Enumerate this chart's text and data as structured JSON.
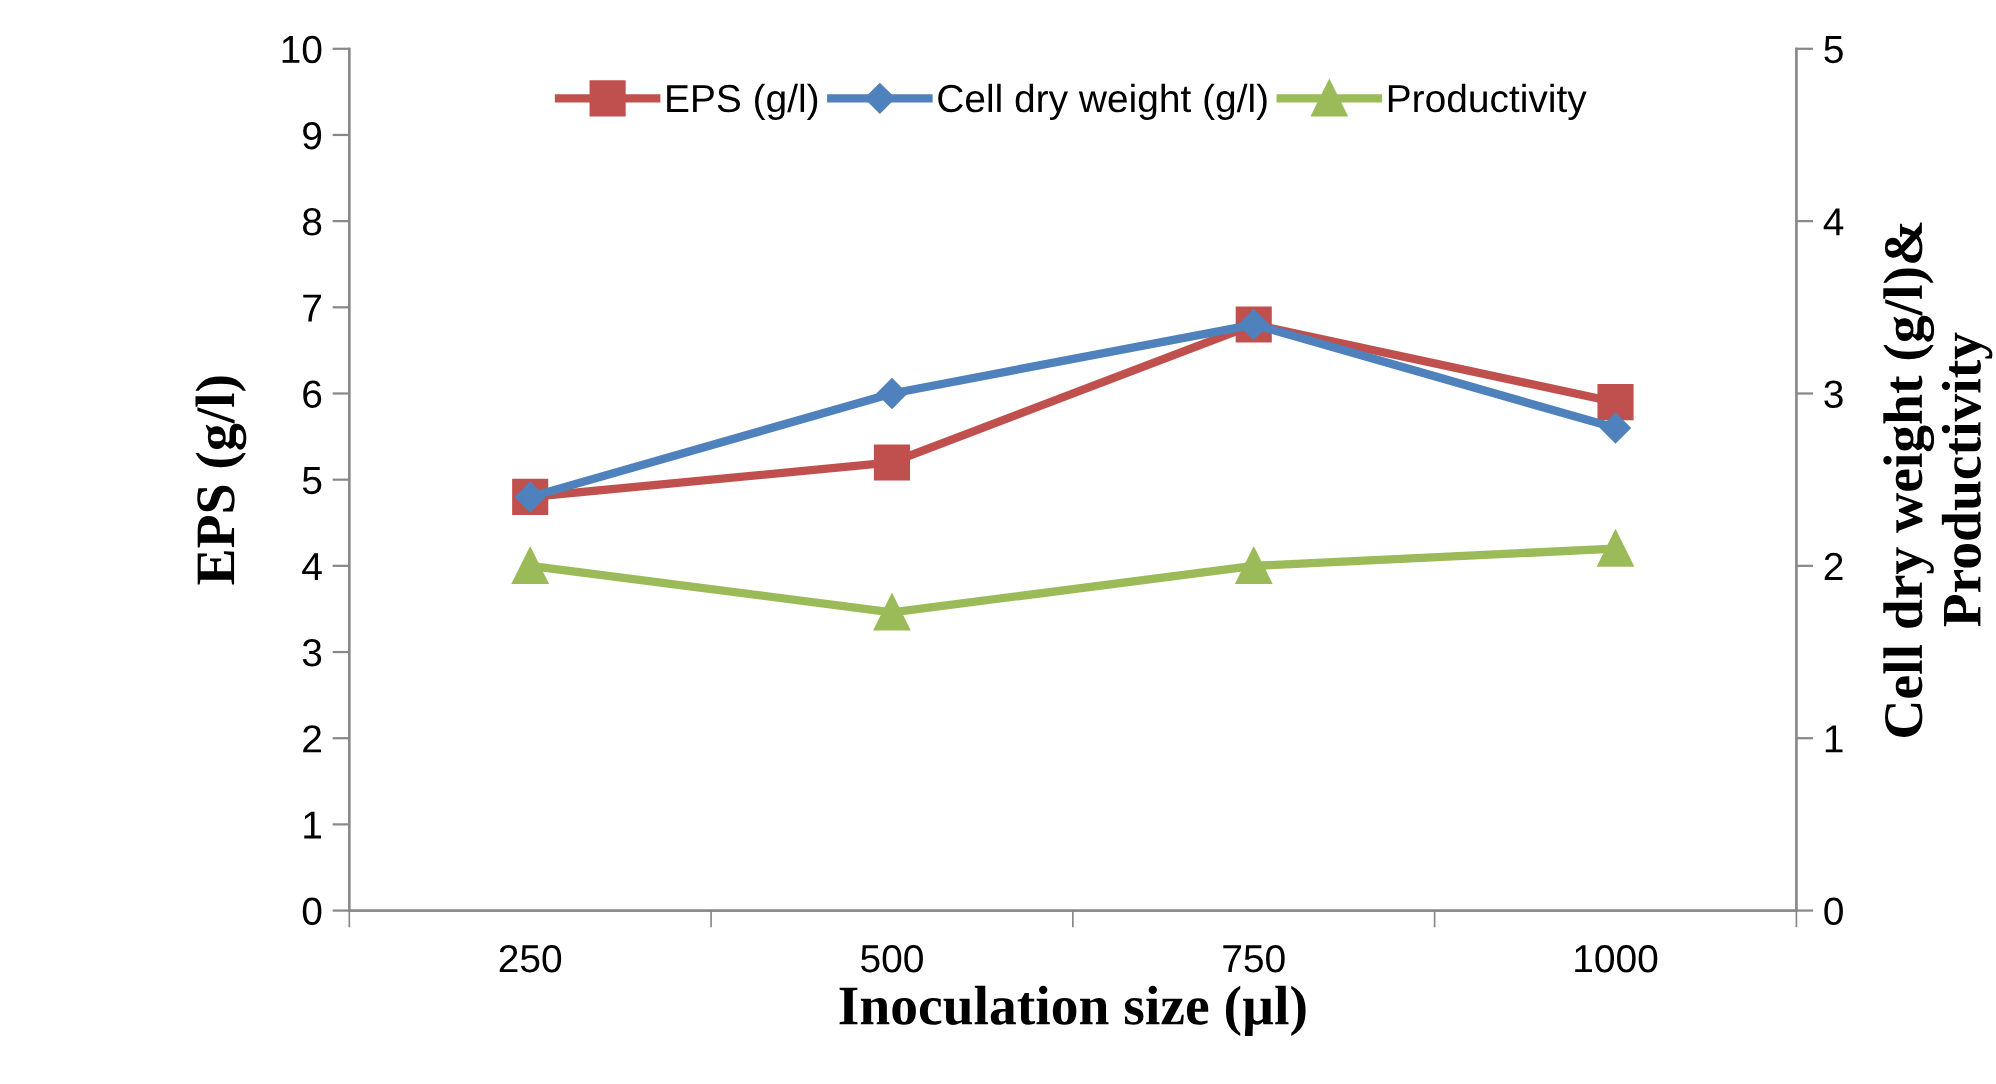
{
  "chart_data": {
    "type": "line",
    "xlabel": "Inoculation size (µl)",
    "ylabel": "EPS (g/l)",
    "y2label": "Cell dry weight (g/l)&\nProductivity",
    "categories": [
      "250",
      "500",
      "750",
      "1000"
    ],
    "series": [
      {
        "name": "EPS (g/l)",
        "color": "#c0504d",
        "marker": "square",
        "values": [
          4.8,
          5.2,
          6.8,
          5.9
        ]
      },
      {
        "name": "Cell dry weight (g/l)",
        "color": "#4f81bd",
        "marker": "diamond",
        "axis": "y2",
        "values": [
          2.4,
          3.0,
          3.4,
          2.8
        ]
      },
      {
        "name": "Productivity",
        "color": "#9bbb59",
        "marker": "triangle",
        "axis": "y2",
        "values": [
          2.0,
          1.73,
          2.0,
          2.1
        ]
      }
    ],
    "ylim": [
      0,
      10
    ],
    "yticks": [
      0,
      1,
      2,
      3,
      4,
      5,
      6,
      7,
      8,
      9,
      10
    ],
    "y2lim": [
      0,
      5
    ],
    "y2ticks": [
      0,
      1,
      2,
      3,
      4,
      5
    ],
    "legend": "top",
    "grid": false
  }
}
